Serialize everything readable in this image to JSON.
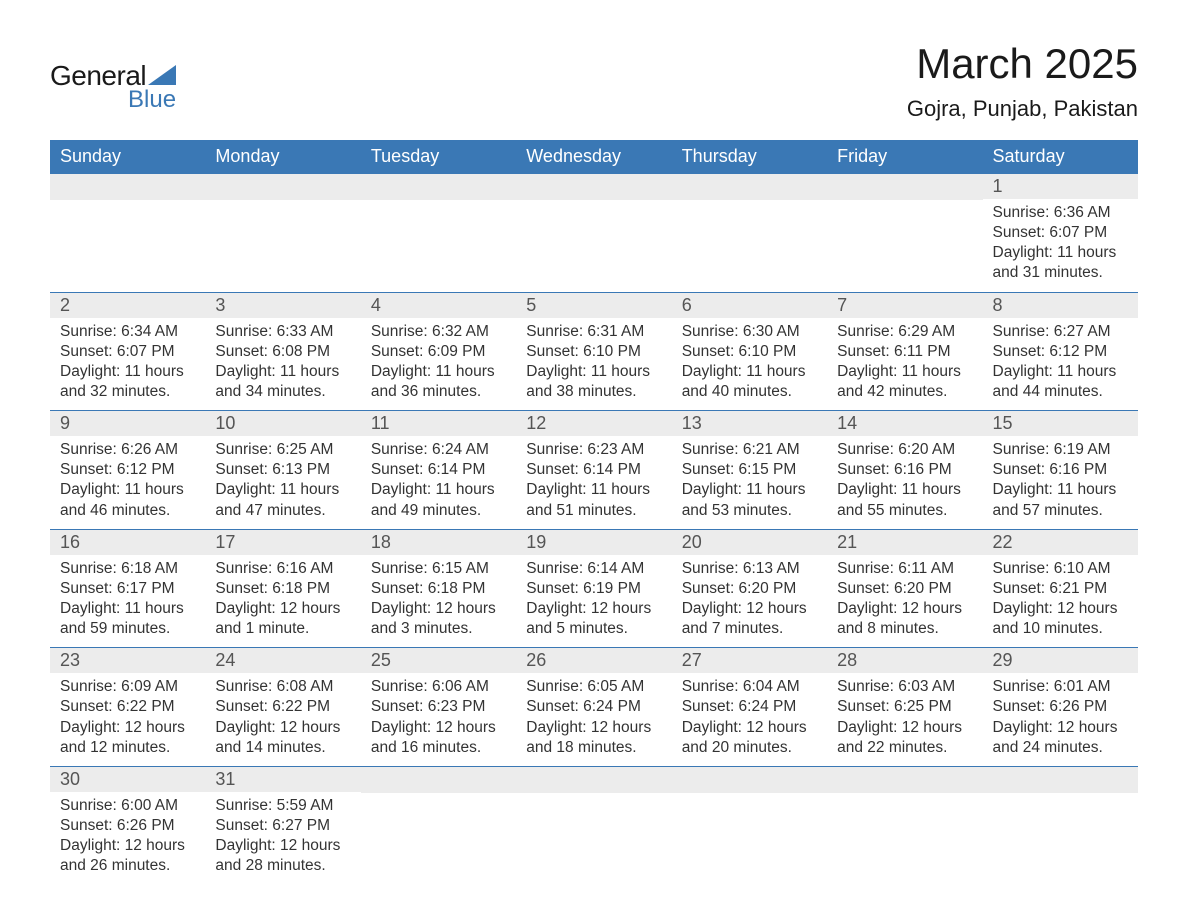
{
  "brand": {
    "part1": "General",
    "part2": "Blue"
  },
  "title": "March 2025",
  "location": "Gojra, Punjab, Pakistan",
  "colors": {
    "header_bg": "#3a78b5",
    "header_text": "#ffffff",
    "daynum_bg": "#ececec",
    "daynum_text": "#555555",
    "body_text": "#333333",
    "border": "#3a78b5",
    "page_bg": "#ffffff",
    "logo_accent": "#3a78b5"
  },
  "typography": {
    "title_fontsize": 42,
    "location_fontsize": 22,
    "header_fontsize": 18,
    "daynum_fontsize": 18,
    "body_fontsize": 15.5,
    "font_family": "Arial"
  },
  "layout": {
    "columns": 7,
    "leading_blanks": 6,
    "trailing_blanks": 5
  },
  "weekdays": [
    "Sunday",
    "Monday",
    "Tuesday",
    "Wednesday",
    "Thursday",
    "Friday",
    "Saturday"
  ],
  "days": [
    {
      "n": "1",
      "sunrise": "Sunrise: 6:36 AM",
      "sunset": "Sunset: 6:07 PM",
      "day1": "Daylight: 11 hours",
      "day2": "and 31 minutes."
    },
    {
      "n": "2",
      "sunrise": "Sunrise: 6:34 AM",
      "sunset": "Sunset: 6:07 PM",
      "day1": "Daylight: 11 hours",
      "day2": "and 32 minutes."
    },
    {
      "n": "3",
      "sunrise": "Sunrise: 6:33 AM",
      "sunset": "Sunset: 6:08 PM",
      "day1": "Daylight: 11 hours",
      "day2": "and 34 minutes."
    },
    {
      "n": "4",
      "sunrise": "Sunrise: 6:32 AM",
      "sunset": "Sunset: 6:09 PM",
      "day1": "Daylight: 11 hours",
      "day2": "and 36 minutes."
    },
    {
      "n": "5",
      "sunrise": "Sunrise: 6:31 AM",
      "sunset": "Sunset: 6:10 PM",
      "day1": "Daylight: 11 hours",
      "day2": "and 38 minutes."
    },
    {
      "n": "6",
      "sunrise": "Sunrise: 6:30 AM",
      "sunset": "Sunset: 6:10 PM",
      "day1": "Daylight: 11 hours",
      "day2": "and 40 minutes."
    },
    {
      "n": "7",
      "sunrise": "Sunrise: 6:29 AM",
      "sunset": "Sunset: 6:11 PM",
      "day1": "Daylight: 11 hours",
      "day2": "and 42 minutes."
    },
    {
      "n": "8",
      "sunrise": "Sunrise: 6:27 AM",
      "sunset": "Sunset: 6:12 PM",
      "day1": "Daylight: 11 hours",
      "day2": "and 44 minutes."
    },
    {
      "n": "9",
      "sunrise": "Sunrise: 6:26 AM",
      "sunset": "Sunset: 6:12 PM",
      "day1": "Daylight: 11 hours",
      "day2": "and 46 minutes."
    },
    {
      "n": "10",
      "sunrise": "Sunrise: 6:25 AM",
      "sunset": "Sunset: 6:13 PM",
      "day1": "Daylight: 11 hours",
      "day2": "and 47 minutes."
    },
    {
      "n": "11",
      "sunrise": "Sunrise: 6:24 AM",
      "sunset": "Sunset: 6:14 PM",
      "day1": "Daylight: 11 hours",
      "day2": "and 49 minutes."
    },
    {
      "n": "12",
      "sunrise": "Sunrise: 6:23 AM",
      "sunset": "Sunset: 6:14 PM",
      "day1": "Daylight: 11 hours",
      "day2": "and 51 minutes."
    },
    {
      "n": "13",
      "sunrise": "Sunrise: 6:21 AM",
      "sunset": "Sunset: 6:15 PM",
      "day1": "Daylight: 11 hours",
      "day2": "and 53 minutes."
    },
    {
      "n": "14",
      "sunrise": "Sunrise: 6:20 AM",
      "sunset": "Sunset: 6:16 PM",
      "day1": "Daylight: 11 hours",
      "day2": "and 55 minutes."
    },
    {
      "n": "15",
      "sunrise": "Sunrise: 6:19 AM",
      "sunset": "Sunset: 6:16 PM",
      "day1": "Daylight: 11 hours",
      "day2": "and 57 minutes."
    },
    {
      "n": "16",
      "sunrise": "Sunrise: 6:18 AM",
      "sunset": "Sunset: 6:17 PM",
      "day1": "Daylight: 11 hours",
      "day2": "and 59 minutes."
    },
    {
      "n": "17",
      "sunrise": "Sunrise: 6:16 AM",
      "sunset": "Sunset: 6:18 PM",
      "day1": "Daylight: 12 hours",
      "day2": "and 1 minute."
    },
    {
      "n": "18",
      "sunrise": "Sunrise: 6:15 AM",
      "sunset": "Sunset: 6:18 PM",
      "day1": "Daylight: 12 hours",
      "day2": "and 3 minutes."
    },
    {
      "n": "19",
      "sunrise": "Sunrise: 6:14 AM",
      "sunset": "Sunset: 6:19 PM",
      "day1": "Daylight: 12 hours",
      "day2": "and 5 minutes."
    },
    {
      "n": "20",
      "sunrise": "Sunrise: 6:13 AM",
      "sunset": "Sunset: 6:20 PM",
      "day1": "Daylight: 12 hours",
      "day2": "and 7 minutes."
    },
    {
      "n": "21",
      "sunrise": "Sunrise: 6:11 AM",
      "sunset": "Sunset: 6:20 PM",
      "day1": "Daylight: 12 hours",
      "day2": "and 8 minutes."
    },
    {
      "n": "22",
      "sunrise": "Sunrise: 6:10 AM",
      "sunset": "Sunset: 6:21 PM",
      "day1": "Daylight: 12 hours",
      "day2": "and 10 minutes."
    },
    {
      "n": "23",
      "sunrise": "Sunrise: 6:09 AM",
      "sunset": "Sunset: 6:22 PM",
      "day1": "Daylight: 12 hours",
      "day2": "and 12 minutes."
    },
    {
      "n": "24",
      "sunrise": "Sunrise: 6:08 AM",
      "sunset": "Sunset: 6:22 PM",
      "day1": "Daylight: 12 hours",
      "day2": "and 14 minutes."
    },
    {
      "n": "25",
      "sunrise": "Sunrise: 6:06 AM",
      "sunset": "Sunset: 6:23 PM",
      "day1": "Daylight: 12 hours",
      "day2": "and 16 minutes."
    },
    {
      "n": "26",
      "sunrise": "Sunrise: 6:05 AM",
      "sunset": "Sunset: 6:24 PM",
      "day1": "Daylight: 12 hours",
      "day2": "and 18 minutes."
    },
    {
      "n": "27",
      "sunrise": "Sunrise: 6:04 AM",
      "sunset": "Sunset: 6:24 PM",
      "day1": "Daylight: 12 hours",
      "day2": "and 20 minutes."
    },
    {
      "n": "28",
      "sunrise": "Sunrise: 6:03 AM",
      "sunset": "Sunset: 6:25 PM",
      "day1": "Daylight: 12 hours",
      "day2": "and 22 minutes."
    },
    {
      "n": "29",
      "sunrise": "Sunrise: 6:01 AM",
      "sunset": "Sunset: 6:26 PM",
      "day1": "Daylight: 12 hours",
      "day2": "and 24 minutes."
    },
    {
      "n": "30",
      "sunrise": "Sunrise: 6:00 AM",
      "sunset": "Sunset: 6:26 PM",
      "day1": "Daylight: 12 hours",
      "day2": "and 26 minutes."
    },
    {
      "n": "31",
      "sunrise": "Sunrise: 5:59 AM",
      "sunset": "Sunset: 6:27 PM",
      "day1": "Daylight: 12 hours",
      "day2": "and 28 minutes."
    }
  ]
}
